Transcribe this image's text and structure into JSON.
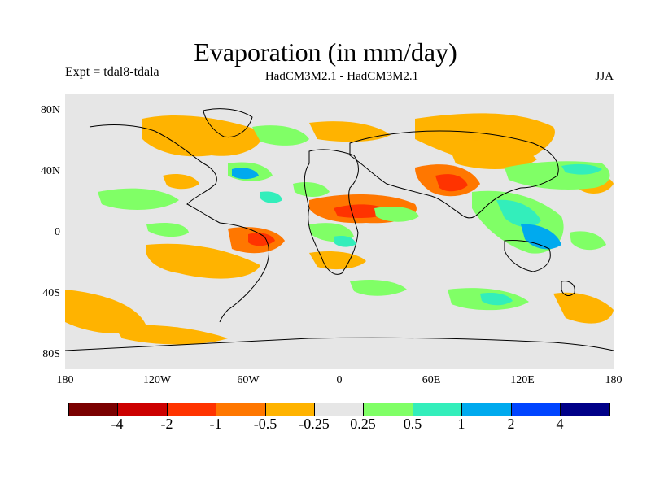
{
  "title": "Evaporation (in mm/day)",
  "experiment": "Expt = tdal8-tdala",
  "model_label": "HadCM3M2.1 - HadCM3M2.1",
  "season": "JJA",
  "axes": {
    "y_ticks": [
      "80N",
      "40N",
      "0",
      "40S",
      "80S"
    ],
    "x_ticks": [
      "180",
      "120W",
      "60W",
      "0",
      "60E",
      "120E",
      "180"
    ]
  },
  "colorbar": {
    "colors": [
      "#7a0000",
      "#cc0000",
      "#ff3300",
      "#ff7700",
      "#ffb300",
      "#e6e6e6",
      "#80ff66",
      "#33eebb",
      "#00aaee",
      "#0044ff",
      "#000088"
    ],
    "labels": [
      "-4",
      "-2",
      "-1",
      "-0.5",
      "-0.25",
      "0.25",
      "0.5",
      "1",
      "2",
      "4"
    ]
  },
  "colors": {
    "background_field": "#e6e6e6",
    "neg_light": "#ffb300",
    "neg_mid": "#ff7700",
    "neg_strong": "#ff3300",
    "neg_strongest": "#cc0000",
    "pos_light": "#80ff66",
    "pos_mid": "#33eebb",
    "pos_strong": "#00aaee",
    "pos_strongest": "#0044ff"
  }
}
